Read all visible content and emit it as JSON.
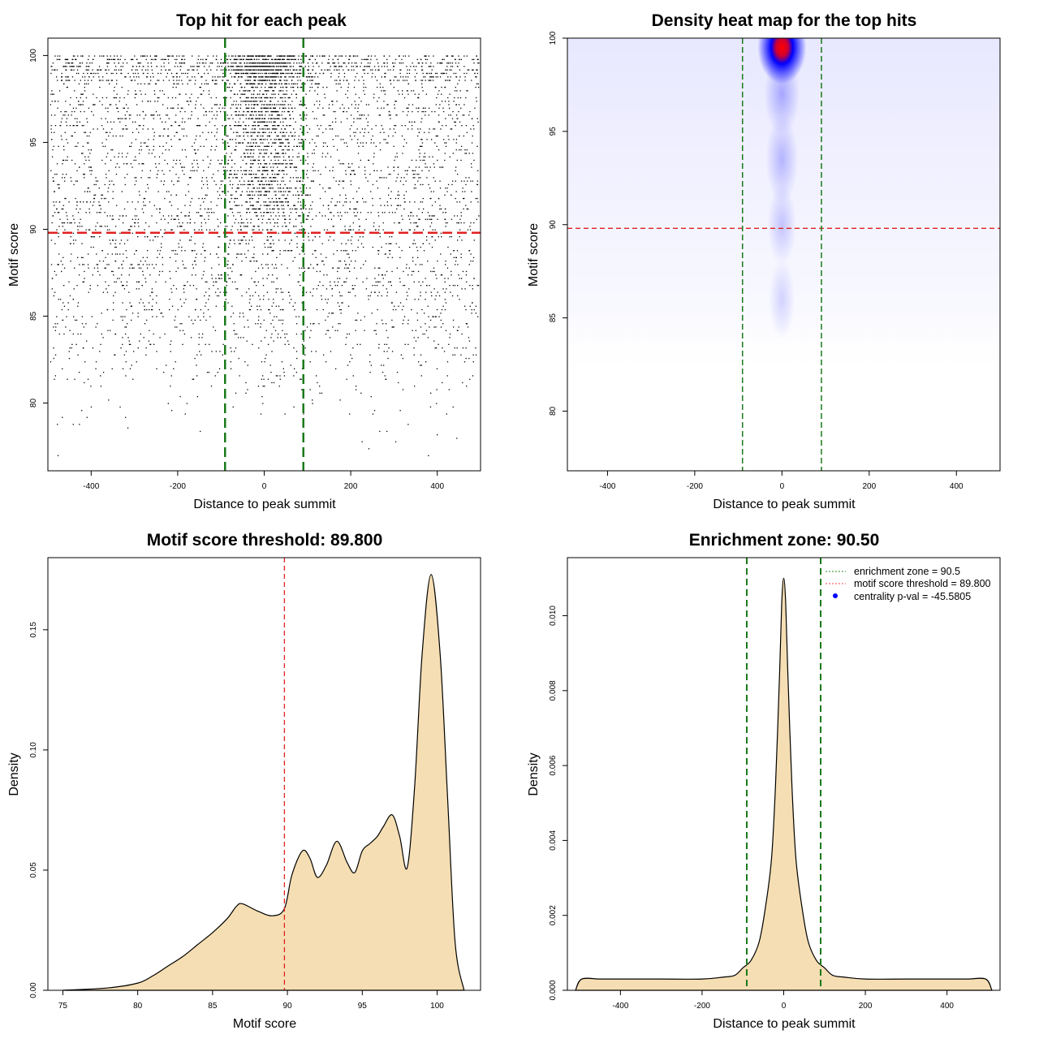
{
  "chart_data": [
    {
      "type": "scatter",
      "title": "Top hit for each peak",
      "xlabel": "Distance to peak summit",
      "ylabel": "Motif score",
      "xlim": [
        -500,
        500
      ],
      "ylim": [
        76.1,
        101
      ],
      "xticks": [
        -400,
        -200,
        0,
        200,
        400
      ],
      "yticks": [
        80,
        85,
        90,
        95,
        100
      ],
      "vlines": [
        -90.5,
        90.5
      ],
      "hline": 89.8,
      "n_points": 6000
    },
    {
      "type": "heatmap",
      "title": "Density heat map for the top hits",
      "xlabel": "Distance to peak summit",
      "ylabel": "Motif score",
      "xlim": [
        -492,
        500
      ],
      "ylim": [
        76.8,
        100
      ],
      "xticks": [
        -400,
        -200,
        0,
        200,
        400
      ],
      "yticks": [
        80,
        85,
        90,
        95,
        100
      ],
      "vlines": [
        -90.5,
        90.5
      ],
      "hline": 89.8,
      "hotspot": {
        "x": 0,
        "y": 99.5
      },
      "colors": [
        "#ffffff",
        "#0000ff",
        "#ff0000"
      ]
    },
    {
      "type": "area",
      "title": "Motif score threshold: 89.800",
      "xlabel": "Motif score",
      "ylabel": "Density",
      "xlim": [
        74,
        102.9
      ],
      "ylim": [
        0,
        0.18
      ],
      "xticks": [
        75,
        80,
        85,
        90,
        95,
        100
      ],
      "yticks": [
        0.0,
        0.05,
        0.1,
        0.15
      ],
      "ytick_labels": [
        "0.00",
        "0.05",
        "0.10",
        "0.15"
      ],
      "vline": 89.8,
      "x": [
        75,
        78,
        80,
        81,
        82,
        83,
        84,
        85,
        86,
        86.6,
        87,
        88,
        89,
        89.8,
        90.3,
        91,
        91.5,
        92,
        92.6,
        93.3,
        94,
        94.5,
        95,
        95.5,
        96,
        96.4,
        97,
        97.5,
        98,
        98.5,
        99,
        99.6,
        100.2,
        100.7,
        101.2,
        101.8
      ],
      "y": [
        0,
        0.001,
        0.003,
        0.006,
        0.01,
        0.014,
        0.019,
        0.024,
        0.03,
        0.035,
        0.036,
        0.033,
        0.031,
        0.034,
        0.048,
        0.058,
        0.055,
        0.047,
        0.052,
        0.062,
        0.053,
        0.049,
        0.058,
        0.061,
        0.064,
        0.068,
        0.073,
        0.064,
        0.051,
        0.085,
        0.14,
        0.173,
        0.14,
        0.08,
        0.02,
        0
      ]
    },
    {
      "type": "area",
      "title": "Enrichment zone: 90.50",
      "xlabel": "Distance to peak summit",
      "ylabel": "Density",
      "xlim": [
        -530,
        530
      ],
      "ylim": [
        0,
        0.01155
      ],
      "xticks": [
        -400,
        -200,
        0,
        200,
        400
      ],
      "yticks": [
        0,
        0.002,
        0.004,
        0.006,
        0.008,
        0.01
      ],
      "ytick_labels": [
        "0.000",
        "0.002",
        "0.004",
        "0.006",
        "0.008",
        "0.010"
      ],
      "vlines": [
        -90.5,
        90.5
      ],
      "x": [
        -510,
        -495,
        -450,
        -400,
        -300,
        -200,
        -150,
        -120,
        -100,
        -80,
        -60,
        -45,
        -30,
        -20,
        -10,
        -5,
        0,
        5,
        10,
        20,
        30,
        45,
        60,
        80,
        100,
        120,
        150,
        200,
        300,
        400,
        450,
        495,
        510
      ],
      "y": [
        0,
        0.0003,
        0.0003,
        0.0003,
        0.0003,
        0.0003,
        0.00035,
        0.0004,
        0.0006,
        0.0008,
        0.0013,
        0.0022,
        0.0035,
        0.0055,
        0.0085,
        0.0103,
        0.011,
        0.0103,
        0.0085,
        0.0055,
        0.0035,
        0.0022,
        0.0013,
        0.0008,
        0.0006,
        0.0004,
        0.00035,
        0.0003,
        0.0003,
        0.0003,
        0.0003,
        0.0003,
        0
      ],
      "legend": {
        "placement": "top-right",
        "items": [
          {
            "label": "enrichment zone = 90.5",
            "style": "dotted",
            "color": "#228b22"
          },
          {
            "label": "motif score threshold = 89.800",
            "style": "dotted",
            "color": "#ff4040"
          },
          {
            "label": "centrality p-val = -45.5805",
            "style": "point",
            "color": "#0000ff"
          }
        ]
      }
    }
  ]
}
